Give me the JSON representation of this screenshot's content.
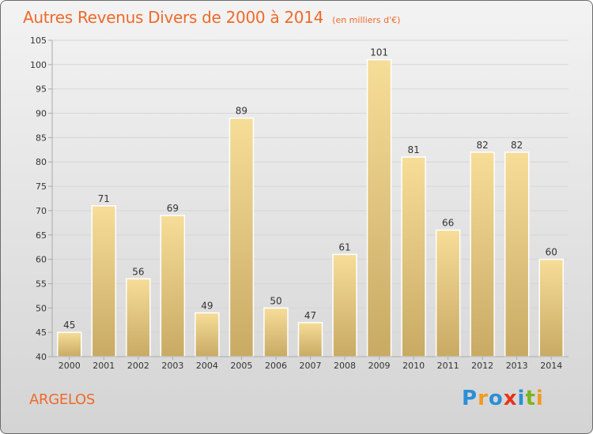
{
  "header": {
    "title": "Autres Revenus Divers de 2000 à 2014",
    "unit": "(en milliers d'€)"
  },
  "location": "ARGELOS",
  "brand": {
    "name": "Proxiti",
    "letters": [
      "P",
      "r",
      "o",
      "x",
      "i",
      "t",
      "i"
    ],
    "colors": [
      "#2b8fd6",
      "#f29a1f",
      "#2b8fd6",
      "#e8331c",
      "#2b8fd6",
      "#7ab51d",
      "#f29a1f"
    ]
  },
  "colors": {
    "title": "#ee6a2a",
    "bar_light": "#f6dd98",
    "bar_dark": "#c8aa64",
    "grid": "#d6d6d6",
    "axis": "#aaaaaa"
  },
  "chart_data": {
    "type": "bar",
    "title": "Autres Revenus Divers de 2000 à 2014",
    "subtitle": "(en milliers d'€)",
    "categories": [
      "2000",
      "2001",
      "2002",
      "2003",
      "2004",
      "2005",
      "2006",
      "2007",
      "2008",
      "2009",
      "2010",
      "2011",
      "2012",
      "2013",
      "2014"
    ],
    "values": [
      45,
      71,
      56,
      69,
      49,
      89,
      50,
      47,
      61,
      101,
      81,
      66,
      82,
      82,
      60
    ],
    "ylim": [
      40,
      105
    ],
    "yticks": [
      40,
      45,
      50,
      55,
      60,
      65,
      70,
      75,
      80,
      85,
      90,
      95,
      100,
      105
    ],
    "grid": true,
    "legend": "none"
  }
}
